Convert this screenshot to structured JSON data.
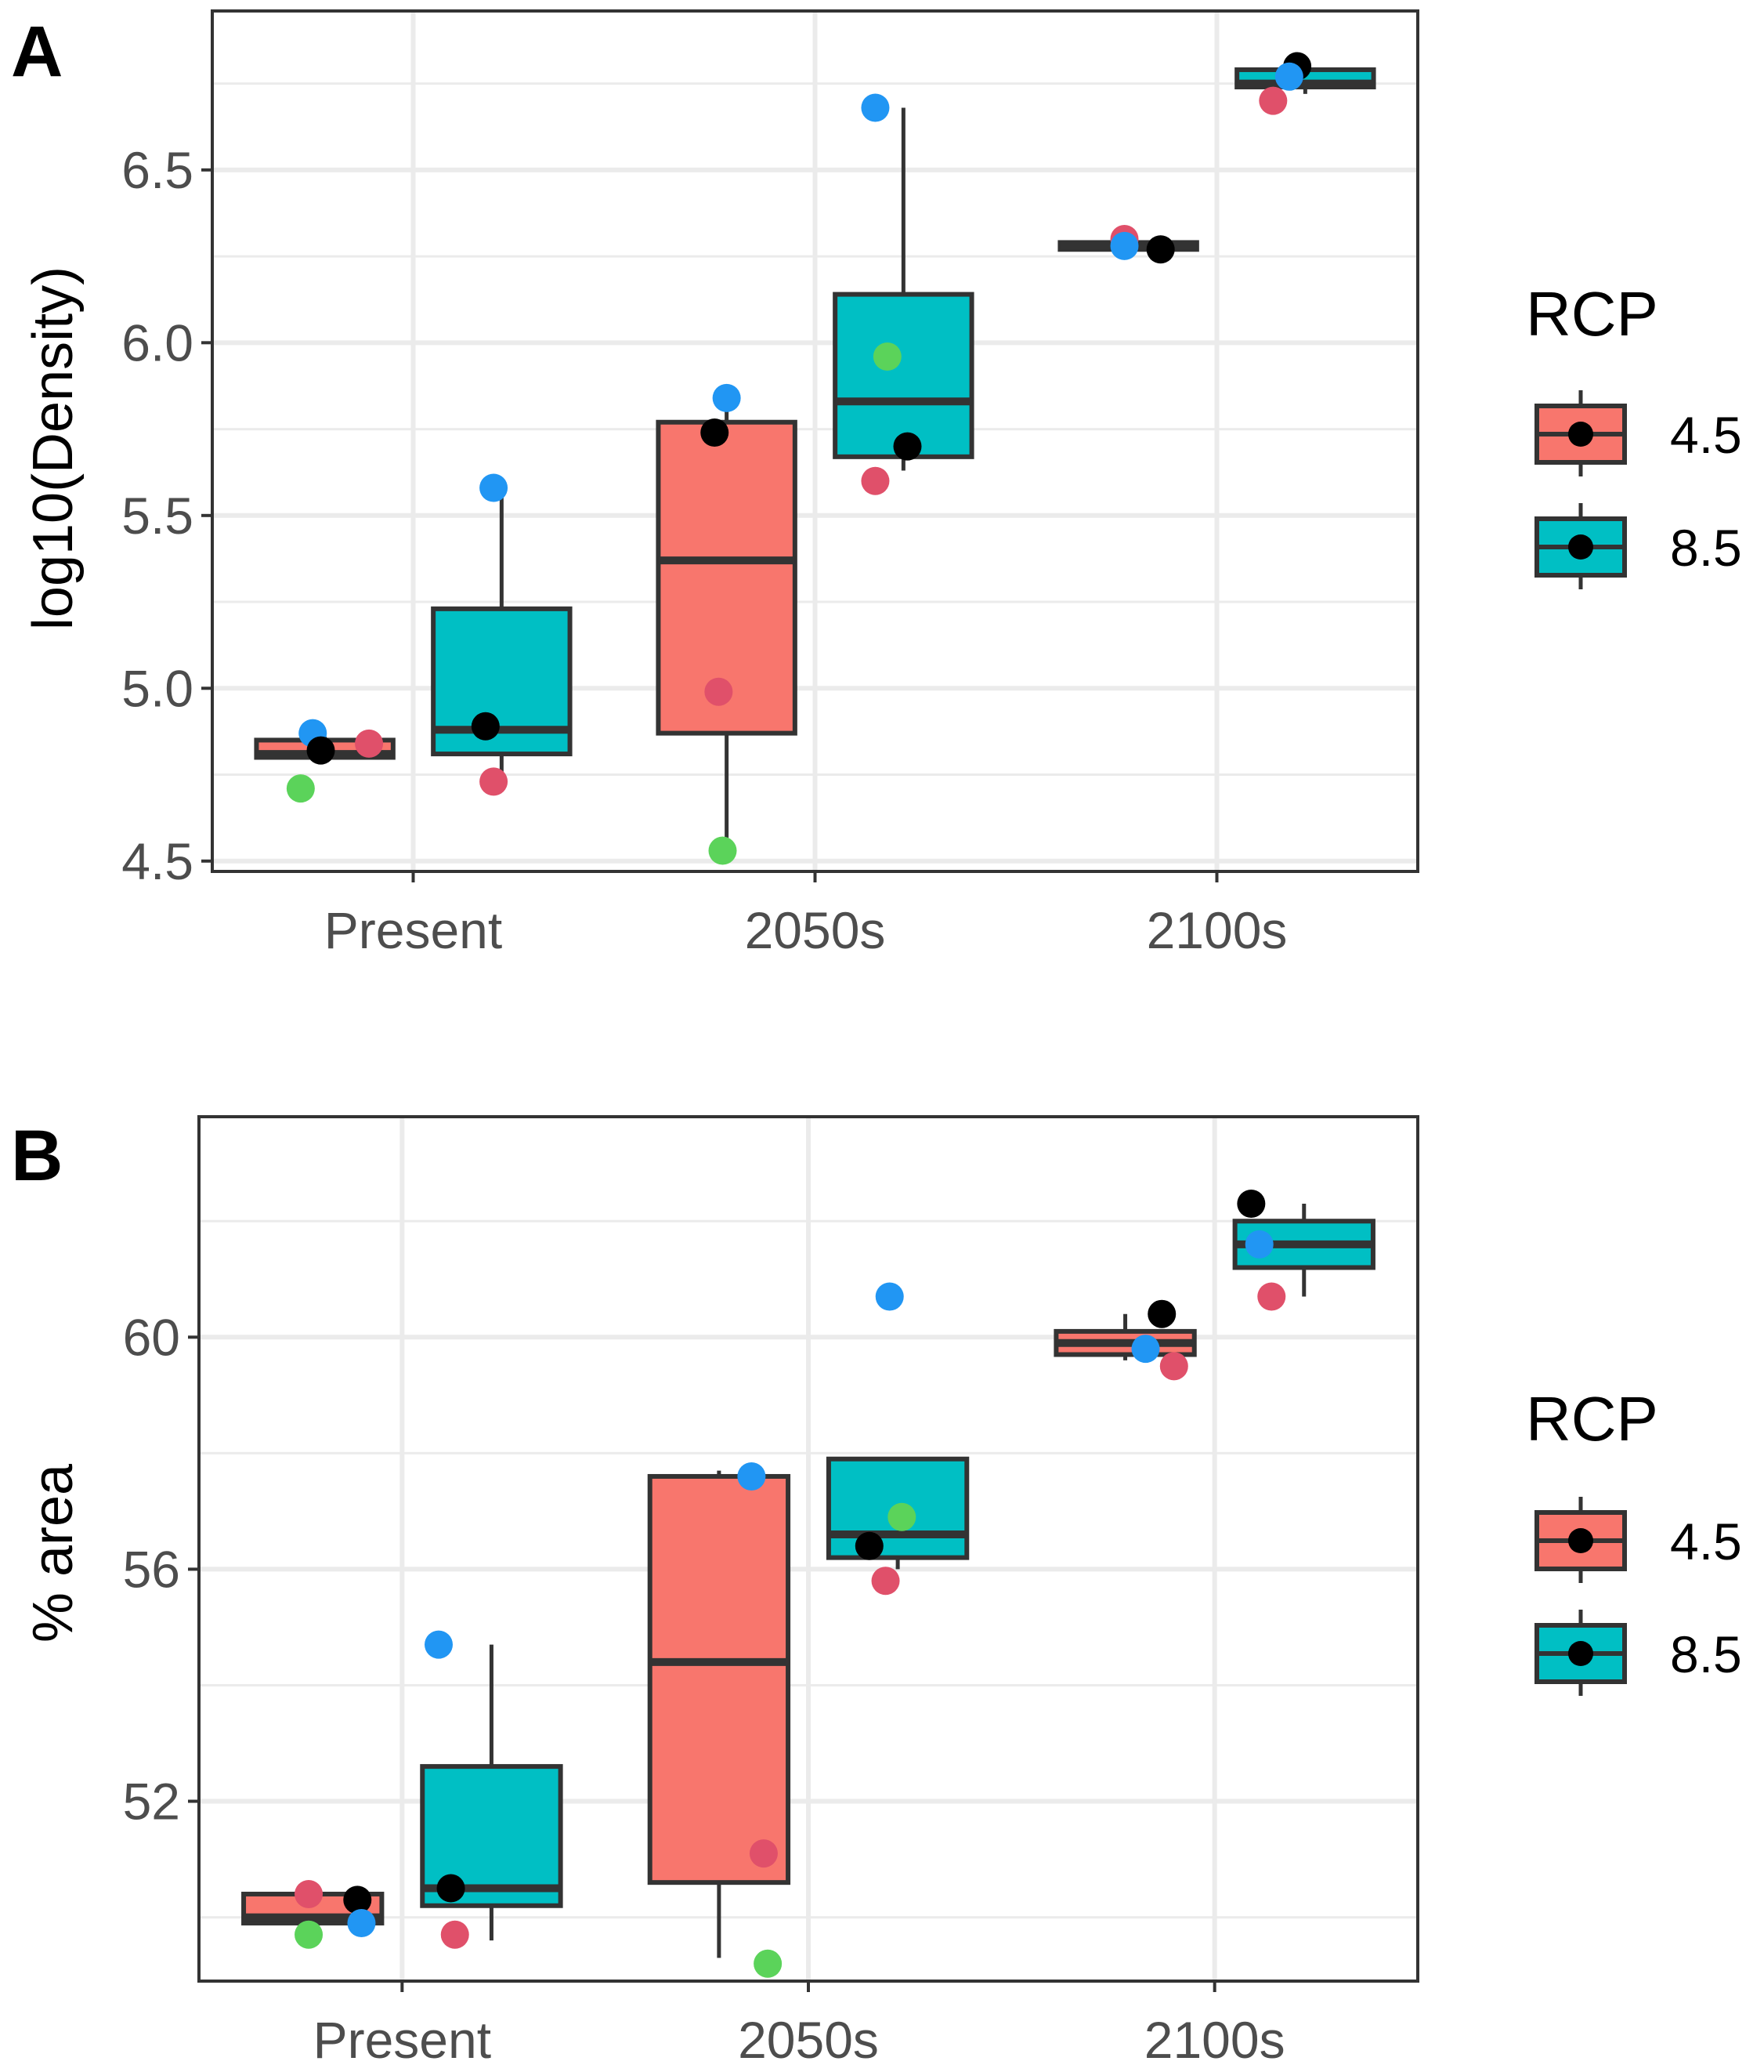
{
  "colors": {
    "rcp45": "#F8766D",
    "rcp85": "#00BFC4",
    "point_black": "#000000",
    "point_blue": "#2196F3",
    "point_red": "#E0506A",
    "point_green": "#5BD35A",
    "box_outline": "#333333",
    "grid": "#ebebeb",
    "panel_border": "#333333"
  },
  "chart_data": [
    {
      "type": "box",
      "panel_label": "A",
      "ylabel": "log10(Density)",
      "xlabel": "",
      "categories": [
        "Present",
        "2050s",
        "2100s"
      ],
      "ylim": [
        4.47,
        6.96
      ],
      "yticks": [
        4.5,
        5.0,
        5.5,
        6.0,
        6.5
      ],
      "ytick_labels": [
        "4.5",
        "5.0",
        "5.5",
        "6.0",
        "6.5"
      ],
      "legend": {
        "title": "RCP",
        "entries": [
          "4.5",
          "8.5"
        ],
        "position": "right"
      },
      "boxes": [
        {
          "category": "Present",
          "rcp": "4.5",
          "min": 4.8,
          "q1": 4.8,
          "median": 4.81,
          "q3": 4.85,
          "max": 4.86
        },
        {
          "category": "Present",
          "rcp": "8.5",
          "min": 4.74,
          "q1": 4.81,
          "median": 4.88,
          "q3": 5.23,
          "max": 5.58
        },
        {
          "category": "2050s",
          "rcp": "4.5",
          "min": 4.53,
          "q1": 4.87,
          "median": 5.37,
          "q3": 5.77,
          "max": 5.8
        },
        {
          "category": "2050s",
          "rcp": "8.5",
          "min": 5.63,
          "q1": 5.67,
          "median": 5.83,
          "q3": 6.14,
          "max": 6.68
        },
        {
          "category": "2100s",
          "rcp": "4.5",
          "min": 6.27,
          "q1": 6.27,
          "median": 6.28,
          "q3": 6.29,
          "max": 6.29
        },
        {
          "category": "2100s",
          "rcp": "8.5",
          "min": 6.72,
          "q1": 6.74,
          "median": 6.75,
          "q3": 6.79,
          "max": 6.8
        }
      ],
      "points": [
        {
          "category": "Present",
          "rcp": "4.5",
          "jitter": -0.25,
          "value": 4.87,
          "color": "blue"
        },
        {
          "category": "Present",
          "rcp": "4.5",
          "jitter": -0.23,
          "value": 4.82,
          "color": "black"
        },
        {
          "category": "Present",
          "rcp": "4.5",
          "jitter": -0.11,
          "value": 4.84,
          "color": "red"
        },
        {
          "category": "Present",
          "rcp": "4.5",
          "jitter": -0.28,
          "value": 4.71,
          "color": "green"
        },
        {
          "category": "Present",
          "rcp": "8.5",
          "jitter": 0.18,
          "value": 4.89,
          "color": "black"
        },
        {
          "category": "Present",
          "rcp": "8.5",
          "jitter": 0.2,
          "value": 4.73,
          "color": "red"
        },
        {
          "category": "Present",
          "rcp": "8.5",
          "jitter": 0.2,
          "value": 5.58,
          "color": "blue"
        },
        {
          "category": "2050s",
          "rcp": "4.5",
          "jitter": -0.25,
          "value": 5.74,
          "color": "black"
        },
        {
          "category": "2050s",
          "rcp": "4.5",
          "jitter": -0.22,
          "value": 5.84,
          "color": "blue"
        },
        {
          "category": "2050s",
          "rcp": "4.5",
          "jitter": -0.24,
          "value": 4.99,
          "color": "red"
        },
        {
          "category": "2050s",
          "rcp": "4.5",
          "jitter": -0.23,
          "value": 4.53,
          "color": "green"
        },
        {
          "category": "2050s",
          "rcp": "8.5",
          "jitter": 0.15,
          "value": 6.68,
          "color": "blue"
        },
        {
          "category": "2050s",
          "rcp": "8.5",
          "jitter": 0.18,
          "value": 5.96,
          "color": "green"
        },
        {
          "category": "2050s",
          "rcp": "8.5",
          "jitter": 0.23,
          "value": 5.7,
          "color": "black"
        },
        {
          "category": "2050s",
          "rcp": "8.5",
          "jitter": 0.15,
          "value": 5.6,
          "color": "red"
        },
        {
          "category": "2100s",
          "rcp": "4.5",
          "jitter": -0.23,
          "value": 6.3,
          "color": "red"
        },
        {
          "category": "2100s",
          "rcp": "4.5",
          "jitter": -0.23,
          "value": 6.28,
          "color": "blue"
        },
        {
          "category": "2100s",
          "rcp": "4.5",
          "jitter": -0.14,
          "value": 6.27,
          "color": "black"
        },
        {
          "category": "2100s",
          "rcp": "8.5",
          "jitter": 0.2,
          "value": 6.8,
          "color": "black"
        },
        {
          "category": "2100s",
          "rcp": "8.5",
          "jitter": 0.18,
          "value": 6.77,
          "color": "blue"
        },
        {
          "category": "2100s",
          "rcp": "8.5",
          "jitter": 0.14,
          "value": 6.7,
          "color": "red"
        }
      ]
    },
    {
      "type": "box",
      "panel_label": "B",
      "ylabel": "% area",
      "xlabel": "",
      "categories": [
        "Present",
        "2050s",
        "2100s"
      ],
      "ylim": [
        48.9,
        63.8
      ],
      "yticks": [
        52,
        56,
        60
      ],
      "ytick_labels": [
        "52",
        "56",
        "60"
      ],
      "legend": {
        "title": "RCP",
        "entries": [
          "4.5",
          "8.5"
        ],
        "position": "right"
      },
      "boxes": [
        {
          "category": "Present",
          "rcp": "4.5",
          "min": 49.9,
          "q1": 49.9,
          "median": 50.0,
          "q3": 50.4,
          "max": 50.4
        },
        {
          "category": "Present",
          "rcp": "8.5",
          "min": 49.6,
          "q1": 50.2,
          "median": 50.5,
          "q3": 52.6,
          "max": 54.7
        },
        {
          "category": "2050s",
          "rcp": "4.5",
          "min": 49.3,
          "q1": 50.6,
          "median": 54.4,
          "q3": 57.6,
          "max": 57.7
        },
        {
          "category": "2050s",
          "rcp": "8.5",
          "min": 56.0,
          "q1": 56.2,
          "median": 56.6,
          "q3": 57.9,
          "max": 57.9
        },
        {
          "category": "2100s",
          "rcp": "4.5",
          "min": 59.6,
          "q1": 59.7,
          "median": 59.9,
          "q3": 60.1,
          "max": 60.4
        },
        {
          "category": "2100s",
          "rcp": "8.5",
          "min": 60.7,
          "q1": 61.2,
          "median": 61.6,
          "q3": 62.0,
          "max": 62.3
        }
      ],
      "points": [
        {
          "category": "Present",
          "rcp": "4.5",
          "jitter": -0.23,
          "value": 50.4,
          "color": "red"
        },
        {
          "category": "Present",
          "rcp": "4.5",
          "jitter": -0.11,
          "value": 50.3,
          "color": "black"
        },
        {
          "category": "Present",
          "rcp": "4.5",
          "jitter": -0.1,
          "value": 49.9,
          "color": "blue"
        },
        {
          "category": "Present",
          "rcp": "4.5",
          "jitter": -0.23,
          "value": 49.7,
          "color": "green"
        },
        {
          "category": "Present",
          "rcp": "8.5",
          "jitter": 0.09,
          "value": 54.7,
          "color": "blue"
        },
        {
          "category": "Present",
          "rcp": "8.5",
          "jitter": 0.12,
          "value": 50.5,
          "color": "black"
        },
        {
          "category": "Present",
          "rcp": "8.5",
          "jitter": 0.13,
          "value": 49.7,
          "color": "red"
        },
        {
          "category": "2050s",
          "rcp": "4.5",
          "jitter": -0.14,
          "value": 57.6,
          "color": "blue"
        },
        {
          "category": "2050s",
          "rcp": "4.5",
          "jitter": -0.11,
          "value": 51.1,
          "color": "red"
        },
        {
          "category": "2050s",
          "rcp": "4.5",
          "jitter": -0.1,
          "value": 49.2,
          "color": "green"
        },
        {
          "category": "2050s",
          "rcp": "8.5",
          "jitter": 0.2,
          "value": 60.7,
          "color": "blue"
        },
        {
          "category": "2050s",
          "rcp": "8.5",
          "jitter": 0.23,
          "value": 56.9,
          "color": "green"
        },
        {
          "category": "2050s",
          "rcp": "8.5",
          "jitter": 0.15,
          "value": 56.4,
          "color": "black"
        },
        {
          "category": "2050s",
          "rcp": "8.5",
          "jitter": 0.19,
          "value": 55.8,
          "color": "red"
        },
        {
          "category": "2100s",
          "rcp": "4.5",
          "jitter": -0.13,
          "value": 60.4,
          "color": "black"
        },
        {
          "category": "2100s",
          "rcp": "4.5",
          "jitter": -0.17,
          "value": 59.8,
          "color": "blue"
        },
        {
          "category": "2100s",
          "rcp": "4.5",
          "jitter": -0.1,
          "value": 59.5,
          "color": "red"
        },
        {
          "category": "2100s",
          "rcp": "8.5",
          "jitter": 0.09,
          "value": 62.3,
          "color": "black"
        },
        {
          "category": "2100s",
          "rcp": "8.5",
          "jitter": 0.11,
          "value": 61.6,
          "color": "blue"
        },
        {
          "category": "2100s",
          "rcp": "8.5",
          "jitter": 0.14,
          "value": 60.7,
          "color": "red"
        }
      ]
    }
  ]
}
